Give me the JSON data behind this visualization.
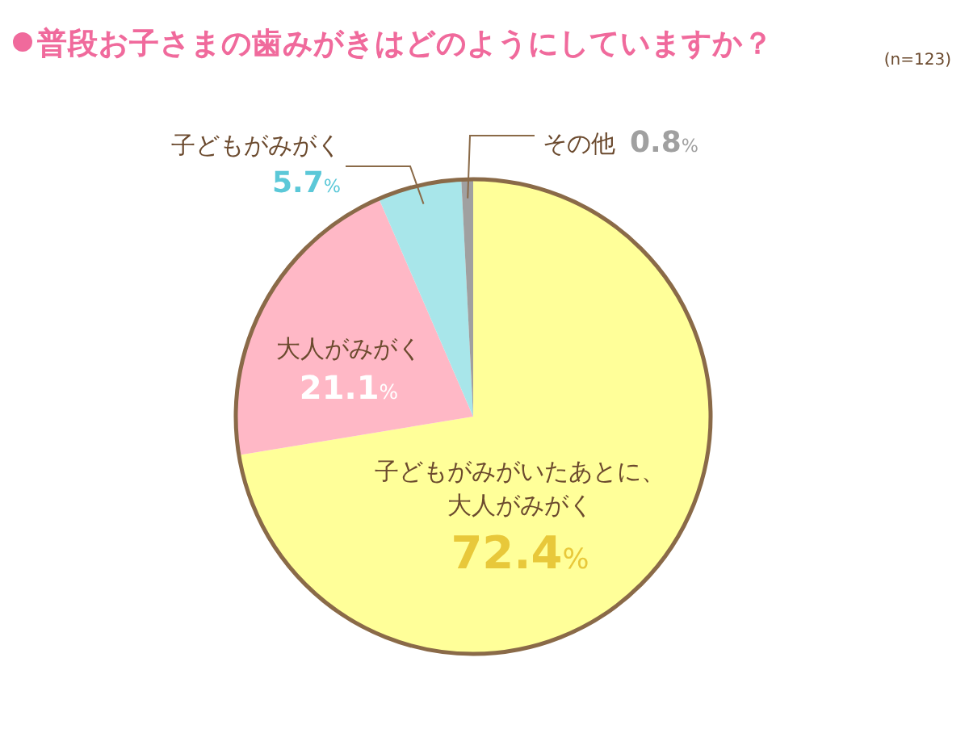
{
  "chart_data": {
    "type": "pie",
    "title": "普段お子さまの歯みがきはどのようにしていますか？",
    "categories": [
      "子どもがみがいたあとに、大人がみがく",
      "大人がみがく",
      "子どもがみがく",
      "その他"
    ],
    "values": [
      72.4,
      21.1,
      5.7,
      0.8
    ],
    "colors": [
      "#ffff99",
      "#ffb8c6",
      "#a8e6ea",
      "#a0a0a0"
    ],
    "value_labels": [
      "72.4%",
      "21.1%",
      "5.7%",
      "0.8%"
    ],
    "annotations": [
      "(n=123)"
    ]
  }
}
